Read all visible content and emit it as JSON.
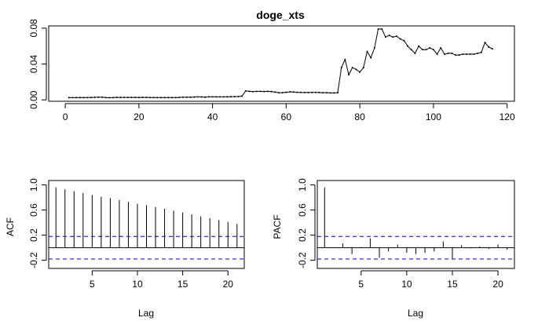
{
  "chart_data": [
    {
      "type": "line",
      "title": "doge_xts",
      "xlabel": "",
      "ylabel": "",
      "xlim": [
        0,
        120
      ],
      "ylim": [
        0,
        0.08
      ],
      "xticks": [
        0,
        20,
        40,
        60,
        80,
        100,
        120
      ],
      "yticks": [
        0.0,
        0.04,
        0.08
      ],
      "ytick_labels": [
        "0.00",
        "0.04",
        "0.08"
      ],
      "grid": false,
      "line_color": "#000000",
      "series": [
        {
          "x": [
            1,
            2,
            3,
            4,
            5,
            6,
            7,
            8,
            9,
            10,
            11,
            12,
            13,
            14,
            15,
            16,
            17,
            18,
            19,
            20,
            21,
            22,
            23,
            24,
            25,
            26,
            27,
            28,
            29,
            30,
            31,
            32,
            33,
            34,
            35,
            36,
            37,
            38,
            39,
            40,
            41,
            42,
            43,
            44,
            45,
            46,
            47,
            48,
            49,
            50,
            51,
            52,
            53,
            54,
            55,
            56,
            57,
            58,
            59,
            60,
            61,
            62,
            63,
            64,
            65,
            66,
            67,
            68,
            69,
            70,
            71,
            72,
            73,
            74,
            75,
            76,
            77,
            78,
            79,
            80,
            81,
            82,
            83,
            84,
            85,
            86,
            87,
            88,
            89,
            90,
            91,
            92,
            93,
            94,
            95,
            96,
            97,
            98,
            99,
            100,
            101,
            102,
            103,
            104,
            105,
            106,
            107,
            108,
            109,
            110,
            111,
            112,
            113,
            114,
            115,
            116
          ],
          "values": [
            0.0025,
            0.0025,
            0.0025,
            0.0026,
            0.0026,
            0.0026,
            0.0027,
            0.0029,
            0.003,
            0.003,
            0.0026,
            0.0024,
            0.0026,
            0.0028,
            0.0028,
            0.0028,
            0.0028,
            0.0028,
            0.0028,
            0.0027,
            0.0028,
            0.0028,
            0.0027,
            0.0026,
            0.0026,
            0.0026,
            0.0026,
            0.0026,
            0.0026,
            0.0026,
            0.0028,
            0.003,
            0.003,
            0.003,
            0.0032,
            0.0034,
            0.0033,
            0.003,
            0.0034,
            0.0034,
            0.0034,
            0.0034,
            0.0034,
            0.0034,
            0.0035,
            0.0036,
            0.0038,
            0.0042,
            0.01,
            0.0095,
            0.0092,
            0.0095,
            0.0095,
            0.0093,
            0.0095,
            0.0093,
            0.0087,
            0.008,
            0.008,
            0.0085,
            0.009,
            0.0088,
            0.0085,
            0.0083,
            0.0082,
            0.0082,
            0.0083,
            0.0083,
            0.0082,
            0.008,
            0.008,
            0.0078,
            0.0078,
            0.008,
            0.036,
            0.045,
            0.028,
            0.036,
            0.034,
            0.031,
            0.036,
            0.054,
            0.047,
            0.058,
            0.079,
            0.079,
            0.07,
            0.072,
            0.07,
            0.071,
            0.068,
            0.066,
            0.06,
            0.056,
            0.052,
            0.06,
            0.056,
            0.056,
            0.058,
            0.056,
            0.051,
            0.058,
            0.051,
            0.052,
            0.052,
            0.05,
            0.05,
            0.051,
            0.051,
            0.051,
            0.051,
            0.052,
            0.053,
            0.064,
            0.059,
            0.057
          ]
        }
      ]
    },
    {
      "type": "bar",
      "title": "",
      "xlabel": "Lag",
      "ylabel": "ACF",
      "xlim": [
        1,
        21
      ],
      "ylim": [
        -0.3,
        1.0
      ],
      "xticks": [
        5,
        10,
        15,
        20
      ],
      "yticks": [
        -0.2,
        0.2,
        0.6,
        1.0
      ],
      "ytick_labels": [
        "-0.2",
        "0.2",
        "0.6",
        "1.0"
      ],
      "confidence_bound": 0.18,
      "bound_color": "#0000cc",
      "x": [
        1,
        2,
        3,
        4,
        5,
        6,
        7,
        8,
        9,
        10,
        11,
        12,
        13,
        14,
        15,
        16,
        17,
        18,
        19,
        20,
        21
      ],
      "values": [
        0.96,
        0.93,
        0.9,
        0.87,
        0.84,
        0.81,
        0.79,
        0.76,
        0.73,
        0.7,
        0.68,
        0.65,
        0.62,
        0.59,
        0.56,
        0.53,
        0.5,
        0.47,
        0.44,
        0.41,
        0.38
      ]
    },
    {
      "type": "bar",
      "title": "",
      "xlabel": "Lag",
      "ylabel": "PACF",
      "xlim": [
        1,
        21
      ],
      "ylim": [
        -0.3,
        1.0
      ],
      "xticks": [
        5,
        10,
        15,
        20
      ],
      "yticks": [
        -0.2,
        0.2,
        0.6,
        1.0
      ],
      "ytick_labels": [
        "-0.2",
        "0.2",
        "0.6",
        "1.0"
      ],
      "confidence_bound": 0.18,
      "bound_color": "#0000cc",
      "x": [
        1,
        2,
        3,
        4,
        5,
        6,
        7,
        8,
        9,
        10,
        11,
        12,
        13,
        14,
        15,
        16,
        17,
        18,
        19,
        20,
        21
      ],
      "values": [
        0.96,
        0.0,
        0.07,
        -0.1,
        0.01,
        0.15,
        -0.16,
        -0.06,
        0.05,
        -0.08,
        -0.1,
        -0.08,
        -0.06,
        0.1,
        -0.17,
        0.04,
        -0.01,
        0.02,
        -0.02,
        0.05,
        -0.03
      ]
    }
  ]
}
